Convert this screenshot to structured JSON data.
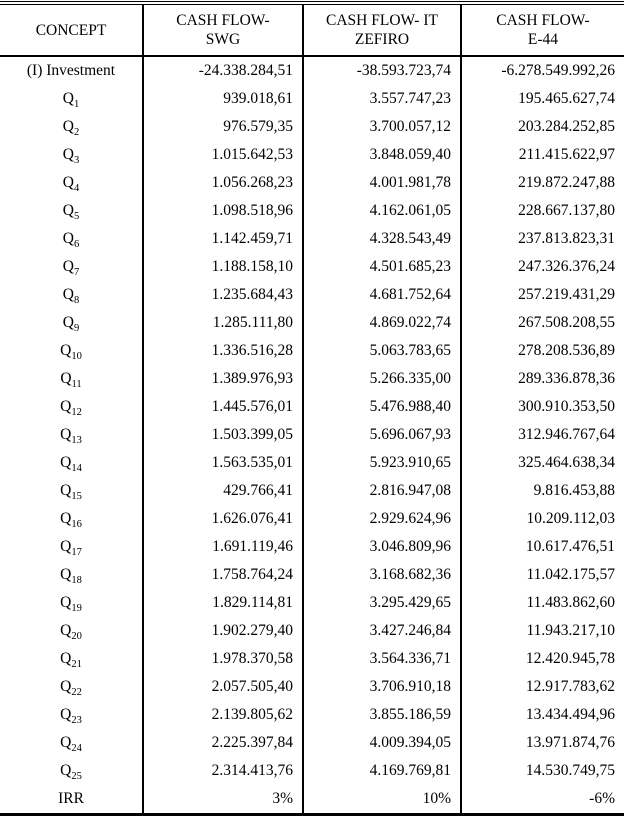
{
  "table": {
    "headers": [
      [
        "CONCEPT"
      ],
      [
        "CASH FLOW-",
        "SWG"
      ],
      [
        "CASH FLOW- IT",
        "ZEFIRO"
      ],
      [
        "CASH FLOW-",
        "E-44"
      ]
    ],
    "rows": [
      {
        "concept": "(I) Investment",
        "sub": "",
        "values": [
          "-24.338.284,51",
          "-38.593.723,74",
          "-6.278.549.992,26"
        ]
      },
      {
        "concept": "Q",
        "sub": "1",
        "values": [
          "939.018,61",
          "3.557.747,23",
          "195.465.627,74"
        ]
      },
      {
        "concept": "Q",
        "sub": "2",
        "values": [
          "976.579,35",
          "3.700.057,12",
          "203.284.252,85"
        ]
      },
      {
        "concept": "Q",
        "sub": "3",
        "values": [
          "1.015.642,53",
          "3.848.059,40",
          "211.415.622,97"
        ]
      },
      {
        "concept": "Q",
        "sub": "4",
        "values": [
          "1.056.268,23",
          "4.001.981,78",
          "219.872.247,88"
        ]
      },
      {
        "concept": "Q",
        "sub": "5",
        "values": [
          "1.098.518,96",
          "4.162.061,05",
          "228.667.137,80"
        ]
      },
      {
        "concept": "Q",
        "sub": "6",
        "values": [
          "1.142.459,71",
          "4.328.543,49",
          "237.813.823,31"
        ]
      },
      {
        "concept": "Q",
        "sub": "7",
        "values": [
          "1.188.158,10",
          "4.501.685,23",
          "247.326.376,24"
        ]
      },
      {
        "concept": "Q",
        "sub": "8",
        "values": [
          "1.235.684,43",
          "4.681.752,64",
          "257.219.431,29"
        ]
      },
      {
        "concept": "Q",
        "sub": "9",
        "values": [
          "1.285.111,80",
          "4.869.022,74",
          "267.508.208,55"
        ]
      },
      {
        "concept": "Q",
        "sub": "10",
        "values": [
          "1.336.516,28",
          "5.063.783,65",
          "278.208.536,89"
        ]
      },
      {
        "concept": "Q",
        "sub": "11",
        "values": [
          "1.389.976,93",
          "5.266.335,00",
          "289.336.878,36"
        ]
      },
      {
        "concept": "Q",
        "sub": "12",
        "values": [
          "1.445.576,01",
          "5.476.988,40",
          "300.910.353,50"
        ]
      },
      {
        "concept": "Q",
        "sub": "13",
        "values": [
          "1.503.399,05",
          "5.696.067,93",
          "312.946.767,64"
        ]
      },
      {
        "concept": "Q",
        "sub": "14",
        "values": [
          "1.563.535,01",
          "5.923.910,65",
          "325.464.638,34"
        ]
      },
      {
        "concept": "Q",
        "sub": "15",
        "values": [
          "429.766,41",
          "2.816.947,08",
          "9.816.453,88"
        ]
      },
      {
        "concept": "Q",
        "sub": "16",
        "values": [
          "1.626.076,41",
          "2.929.624,96",
          "10.209.112,03"
        ]
      },
      {
        "concept": "Q",
        "sub": "17",
        "values": [
          "1.691.119,46",
          "3.046.809,96",
          "10.617.476,51"
        ]
      },
      {
        "concept": "Q",
        "sub": "18",
        "values": [
          "1.758.764,24",
          "3.168.682,36",
          "11.042.175,57"
        ]
      },
      {
        "concept": "Q",
        "sub": "19",
        "values": [
          "1.829.114,81",
          "3.295.429,65",
          "11.483.862,60"
        ]
      },
      {
        "concept": "Q",
        "sub": "20",
        "values": [
          "1.902.279,40",
          "3.427.246,84",
          "11.943.217,10"
        ]
      },
      {
        "concept": "Q",
        "sub": "21",
        "values": [
          "1.978.370,58",
          "3.564.336,71",
          "12.420.945,78"
        ]
      },
      {
        "concept": "Q",
        "sub": "22",
        "values": [
          "2.057.505,40",
          "3.706.910,18",
          "12.917.783,62"
        ]
      },
      {
        "concept": "Q",
        "sub": "23",
        "values": [
          "2.139.805,62",
          "3.855.186,59",
          "13.434.494,96"
        ]
      },
      {
        "concept": "Q",
        "sub": "24",
        "values": [
          "2.225.397,84",
          "4.009.394,05",
          "13.971.874,76"
        ]
      },
      {
        "concept": "Q",
        "sub": "25",
        "values": [
          "2.314.413,76",
          "4.169.769,81",
          "14.530.749,75"
        ]
      },
      {
        "concept": "IRR",
        "sub": "",
        "values": [
          "3%",
          "10%",
          "-6%"
        ]
      }
    ],
    "colors": {
      "text": "#000000",
      "background": "#ffffff",
      "rule": "#000000"
    }
  }
}
